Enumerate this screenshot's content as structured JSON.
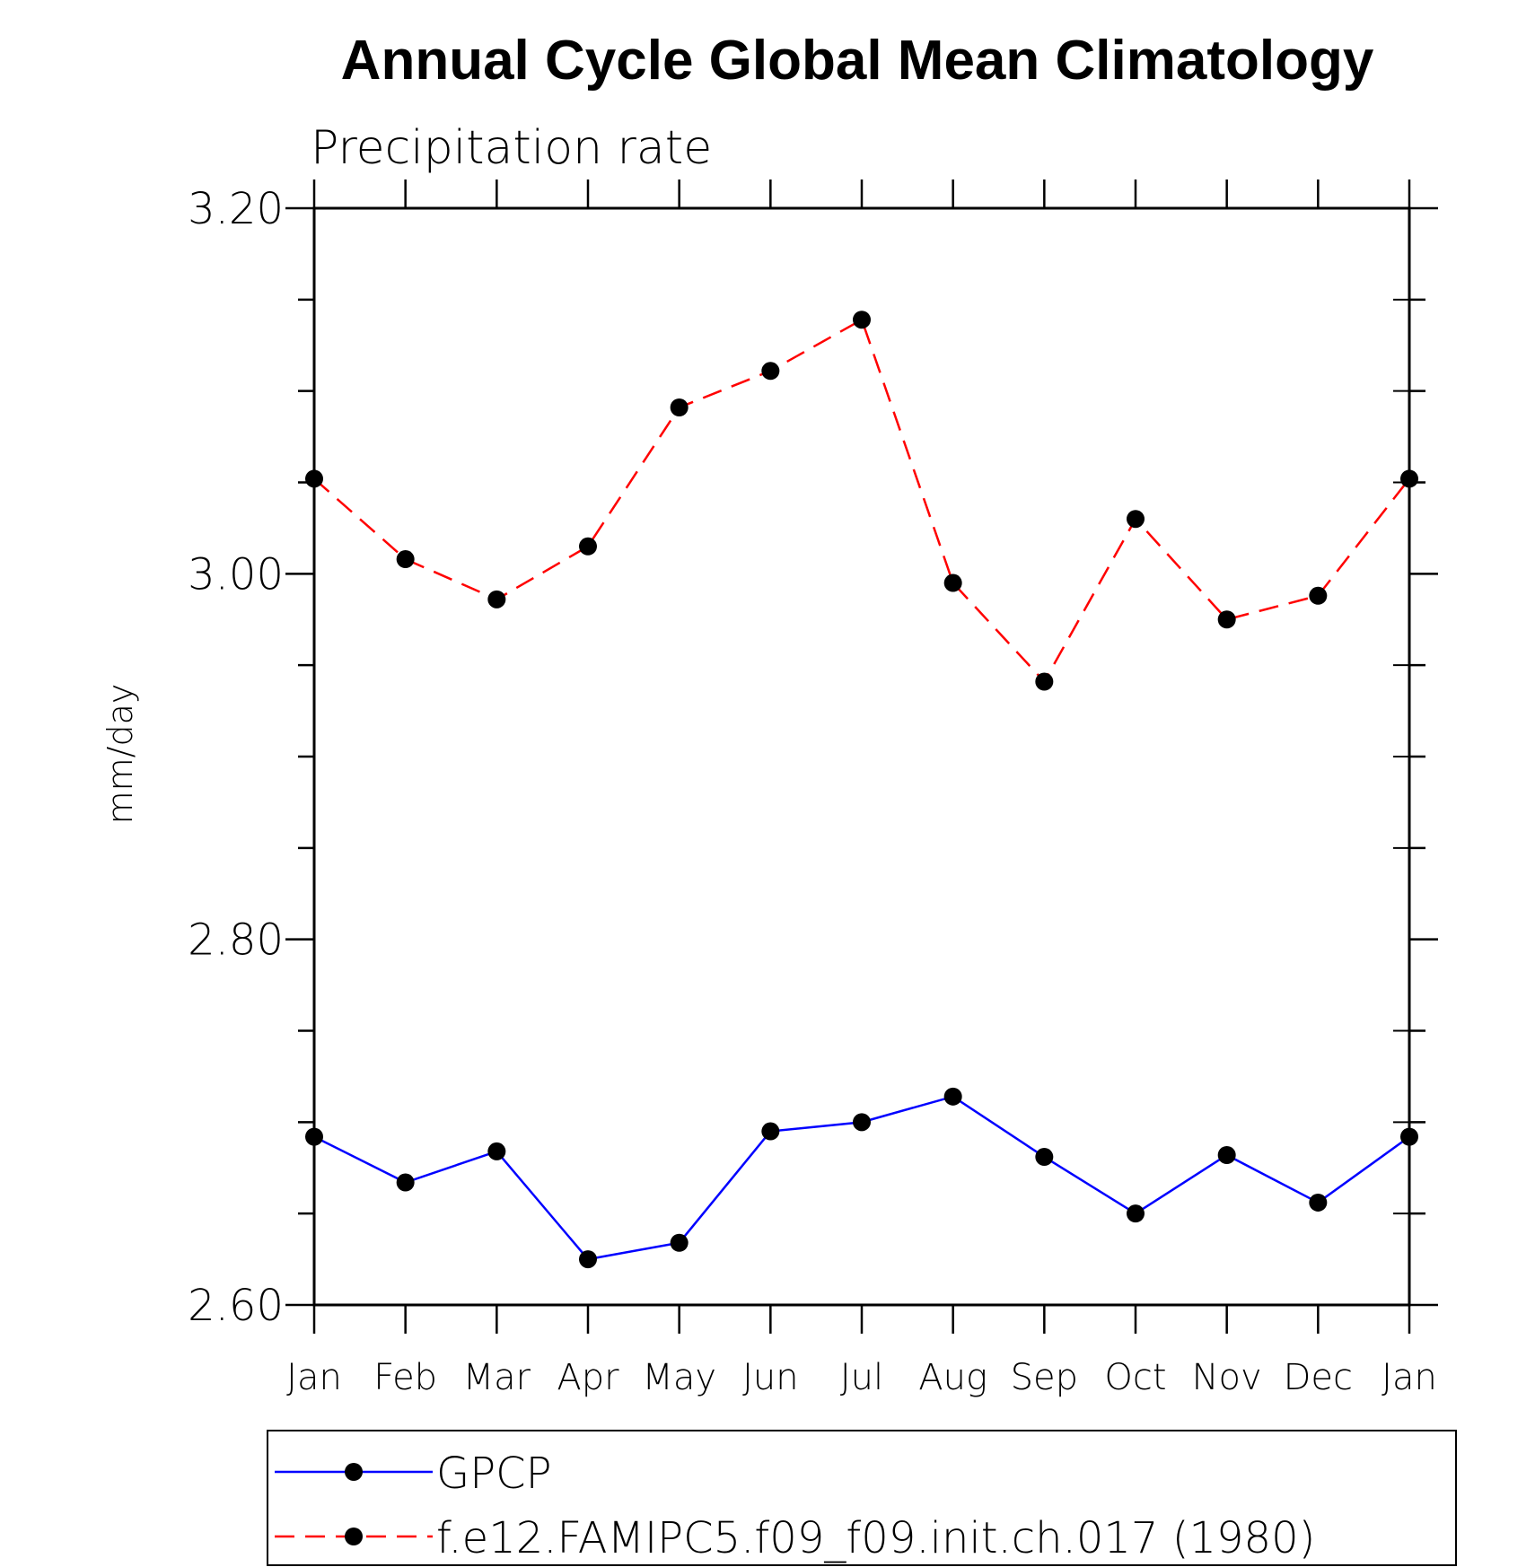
{
  "chart_data": {
    "type": "line",
    "title": "Annual Cycle Global Mean Climatology",
    "subtitle": "Precipitation rate",
    "xlabel": "",
    "ylabel": "mm/day",
    "categories": [
      "Jan",
      "Feb",
      "Mar",
      "Apr",
      "May",
      "Jun",
      "Jul",
      "Aug",
      "Sep",
      "Oct",
      "Nov",
      "Dec",
      "Jan"
    ],
    "ylim": [
      2.6,
      3.2
    ],
    "yticks": [
      "2.60",
      "2.80",
      "3.00",
      "3.20"
    ],
    "y_minor_step": 0.05,
    "grid": false,
    "legend_position": "bottom",
    "series": [
      {
        "name": "GPCP",
        "color": "#0000ff",
        "style": "solid",
        "marker": "circle",
        "values": [
          2.692,
          2.667,
          2.684,
          2.625,
          2.634,
          2.695,
          2.7,
          2.714,
          2.681,
          2.65,
          2.682,
          2.656,
          2.692
        ]
      },
      {
        "name": "f.e12.FAMIPC5.f09_f09.init.ch.017 (1980)",
        "color": "#ff0000",
        "style": "dashed",
        "marker": "circle",
        "values": [
          3.052,
          3.008,
          2.986,
          3.015,
          3.091,
          3.111,
          3.139,
          2.995,
          2.941,
          3.03,
          2.975,
          2.988,
          3.052
        ]
      }
    ]
  }
}
